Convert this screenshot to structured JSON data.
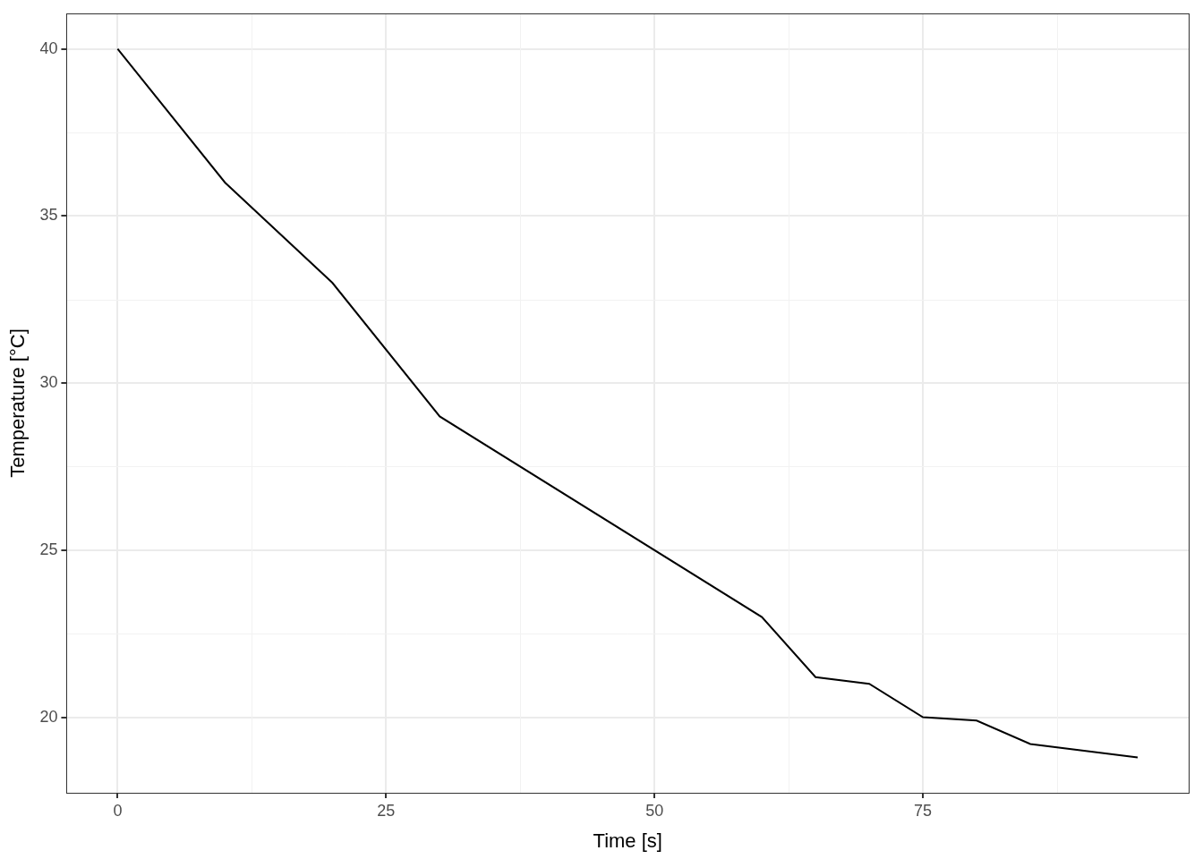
{
  "chart_data": {
    "type": "line",
    "x_label": "Time [s]",
    "y_label": "Temperature [°C]",
    "x": [
      0,
      10,
      20,
      30,
      60,
      65,
      70,
      75,
      80,
      85,
      95
    ],
    "values": [
      40,
      36,
      33,
      29,
      23,
      21.2,
      21,
      20,
      19.9,
      19.2,
      18.8
    ],
    "color": "#000000",
    "xlim": [
      -4.75,
      99.75
    ],
    "ylim": [
      17.74,
      41.06
    ],
    "xticks": [
      0,
      25,
      50,
      75
    ],
    "yticks": [
      20,
      25,
      30,
      35,
      40
    ],
    "grid": true
  }
}
